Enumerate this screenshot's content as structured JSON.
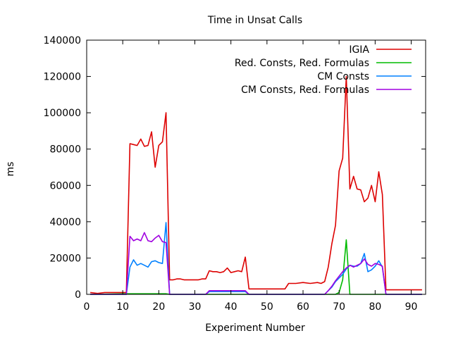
{
  "chart_data": {
    "type": "line",
    "title": "Time in Unsat Calls",
    "xlabel": "Experiment Number",
    "ylabel": "ms",
    "xlim": [
      0,
      94
    ],
    "ylim": [
      0,
      140000
    ],
    "xticks": [
      0,
      10,
      20,
      30,
      40,
      50,
      60,
      70,
      80,
      90
    ],
    "yticks": [
      0,
      20000,
      40000,
      60000,
      80000,
      100000,
      120000,
      140000
    ],
    "grid": false,
    "legend_position": "top-right",
    "series": [
      {
        "name": "IGIA",
        "color": "#dd0000",
        "points": [
          [
            1,
            1000
          ],
          [
            3,
            500
          ],
          [
            5,
            1000
          ],
          [
            7,
            1000
          ],
          [
            9,
            1000
          ],
          [
            11,
            1000
          ],
          [
            12,
            83000
          ],
          [
            13,
            82500
          ],
          [
            14,
            82000
          ],
          [
            15,
            85500
          ],
          [
            16,
            81500
          ],
          [
            17,
            82000
          ],
          [
            18,
            89500
          ],
          [
            19,
            70000
          ],
          [
            20,
            82000
          ],
          [
            21,
            84000
          ],
          [
            22,
            100000
          ],
          [
            23,
            8000
          ],
          [
            24,
            8000
          ],
          [
            25,
            8500
          ],
          [
            26,
            8500
          ],
          [
            27,
            8000
          ],
          [
            28,
            8000
          ],
          [
            29,
            8000
          ],
          [
            30,
            8000
          ],
          [
            31,
            8000
          ],
          [
            32,
            8500
          ],
          [
            33,
            8500
          ],
          [
            34,
            13000
          ],
          [
            35,
            12500
          ],
          [
            36,
            12500
          ],
          [
            37,
            12000
          ],
          [
            38,
            12500
          ],
          [
            39,
            14500
          ],
          [
            40,
            12000
          ],
          [
            41,
            12500
          ],
          [
            42,
            13000
          ],
          [
            43,
            12500
          ],
          [
            44,
            20500
          ],
          [
            45,
            3000
          ],
          [
            50,
            3000
          ],
          [
            55,
            3000
          ],
          [
            56,
            6000
          ],
          [
            58,
            6000
          ],
          [
            60,
            6500
          ],
          [
            62,
            6000
          ],
          [
            64,
            6500
          ],
          [
            65,
            6000
          ],
          [
            66,
            7000
          ],
          [
            67,
            15000
          ],
          [
            68,
            28000
          ],
          [
            69,
            38000
          ],
          [
            70,
            68000
          ],
          [
            71,
            75000
          ],
          [
            72,
            120000
          ],
          [
            73,
            58000
          ],
          [
            74,
            65000
          ],
          [
            75,
            58000
          ],
          [
            76,
            57500
          ],
          [
            77,
            51000
          ],
          [
            78,
            53000
          ],
          [
            79,
            60000
          ],
          [
            80,
            51000
          ],
          [
            81,
            67500
          ],
          [
            82,
            55000
          ],
          [
            83,
            2500
          ],
          [
            85,
            2500
          ],
          [
            88,
            2500
          ],
          [
            90,
            2500
          ],
          [
            93,
            2500
          ]
        ]
      },
      {
        "name": "Red. Consts, Red. Formulas",
        "color": "#00bb00",
        "points": [
          [
            1,
            0
          ],
          [
            11,
            300
          ],
          [
            12,
            300
          ],
          [
            22,
            300
          ],
          [
            23,
            0
          ],
          [
            69,
            0
          ],
          [
            70,
            1000
          ],
          [
            71,
            8000
          ],
          [
            72,
            30000
          ],
          [
            73,
            0
          ],
          [
            93,
            0
          ]
        ]
      },
      {
        "name": "CM Consts",
        "color": "#0080ff",
        "points": [
          [
            1,
            0
          ],
          [
            11,
            0
          ],
          [
            12,
            15000
          ],
          [
            13,
            19000
          ],
          [
            14,
            16000
          ],
          [
            15,
            17000
          ],
          [
            16,
            16000
          ],
          [
            17,
            15000
          ],
          [
            18,
            18000
          ],
          [
            19,
            18500
          ],
          [
            20,
            17500
          ],
          [
            21,
            17000
          ],
          [
            22,
            39500
          ],
          [
            23,
            0
          ],
          [
            33,
            0
          ],
          [
            34,
            1500
          ],
          [
            36,
            1500
          ],
          [
            38,
            1500
          ],
          [
            40,
            1500
          ],
          [
            42,
            1500
          ],
          [
            44,
            1500
          ],
          [
            45,
            0
          ],
          [
            66,
            0
          ],
          [
            67,
            2000
          ],
          [
            68,
            4000
          ],
          [
            69,
            7000
          ],
          [
            70,
            9000
          ],
          [
            71,
            11000
          ],
          [
            72,
            14000
          ],
          [
            73,
            16000
          ],
          [
            74,
            15500
          ],
          [
            75,
            15500
          ],
          [
            76,
            17000
          ],
          [
            77,
            22500
          ],
          [
            78,
            12500
          ],
          [
            79,
            13500
          ],
          [
            80,
            15500
          ],
          [
            81,
            18500
          ],
          [
            82,
            15000
          ],
          [
            83,
            0
          ],
          [
            93,
            0
          ]
        ]
      },
      {
        "name": "CM Consts, Red. Formulas",
        "color": "#a000e0",
        "points": [
          [
            1,
            0
          ],
          [
            11,
            0
          ],
          [
            12,
            32000
          ],
          [
            13,
            29500
          ],
          [
            14,
            30500
          ],
          [
            15,
            29500
          ],
          [
            16,
            34000
          ],
          [
            17,
            29500
          ],
          [
            18,
            29000
          ],
          [
            19,
            31000
          ],
          [
            20,
            32500
          ],
          [
            21,
            29000
          ],
          [
            22,
            28500
          ],
          [
            23,
            0
          ],
          [
            33,
            0
          ],
          [
            34,
            2000
          ],
          [
            36,
            2000
          ],
          [
            38,
            2000
          ],
          [
            40,
            2000
          ],
          [
            42,
            2000
          ],
          [
            44,
            2000
          ],
          [
            45,
            0
          ],
          [
            66,
            0
          ],
          [
            67,
            2000
          ],
          [
            68,
            4500
          ],
          [
            69,
            7500
          ],
          [
            70,
            10000
          ],
          [
            71,
            12500
          ],
          [
            72,
            14500
          ],
          [
            73,
            16000
          ],
          [
            74,
            15000
          ],
          [
            75,
            16000
          ],
          [
            76,
            17000
          ],
          [
            77,
            19500
          ],
          [
            78,
            16500
          ],
          [
            79,
            15500
          ],
          [
            80,
            17000
          ],
          [
            81,
            16500
          ],
          [
            82,
            15500
          ],
          [
            83,
            0
          ],
          [
            93,
            0
          ]
        ]
      }
    ]
  }
}
